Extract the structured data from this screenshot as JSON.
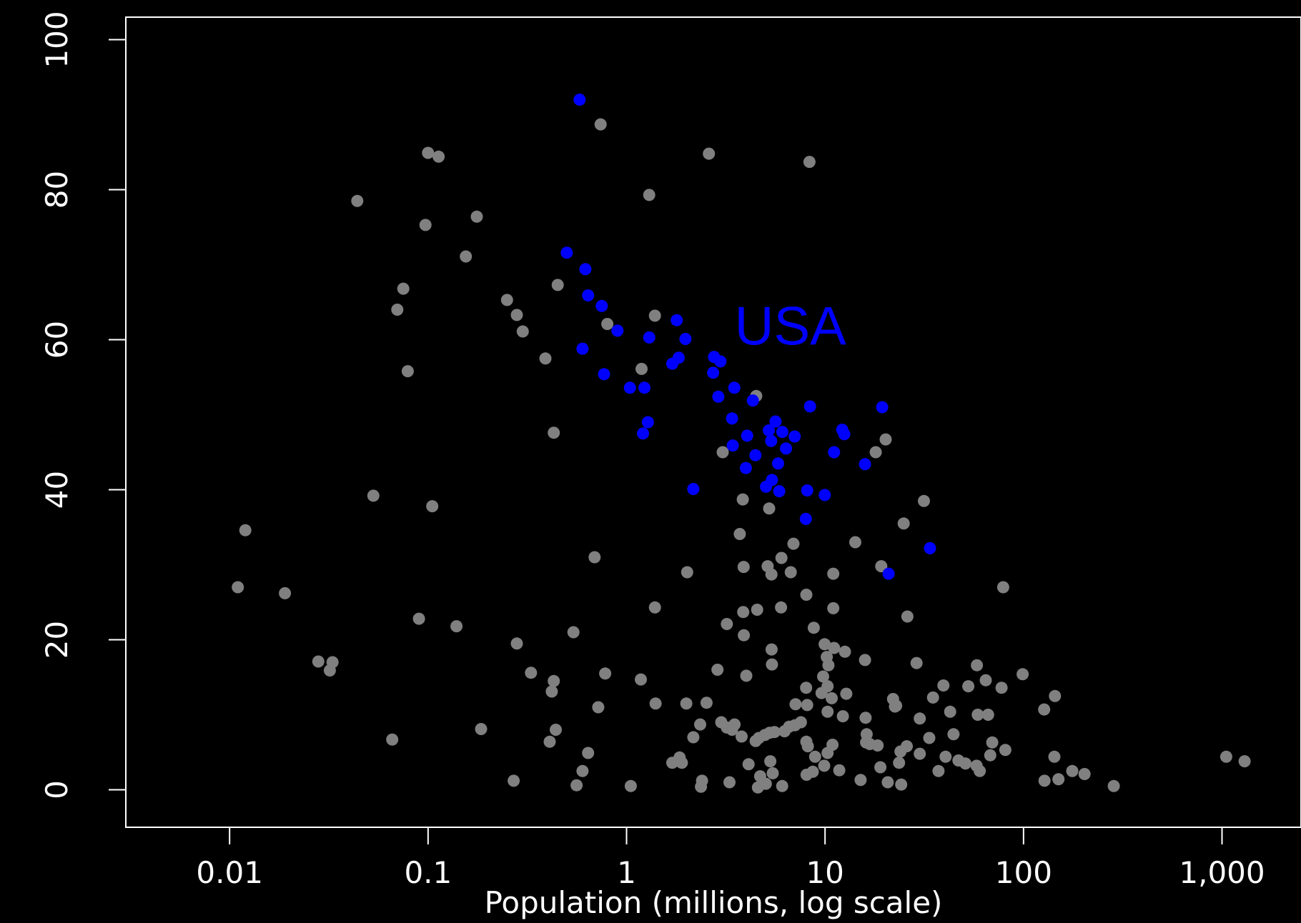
{
  "chart_data": {
    "type": "scatter",
    "title": "",
    "xlabel": "Population (millions, log scale)",
    "ylabel": "",
    "x_scale": "log",
    "xlim": [
      0.003,
      2500
    ],
    "ylim": [
      -5,
      103
    ],
    "x_ticks": [
      {
        "value": 0.01,
        "label": "0.01"
      },
      {
        "value": 0.1,
        "label": "0.1"
      },
      {
        "value": 1,
        "label": "1"
      },
      {
        "value": 10,
        "label": "10"
      },
      {
        "value": 100,
        "label": "100"
      },
      {
        "value": 1000,
        "label": "1,000"
      }
    ],
    "y_ticks": [
      {
        "value": 0,
        "label": "0"
      },
      {
        "value": 20,
        "label": "20"
      },
      {
        "value": 40,
        "label": "40"
      },
      {
        "value": 60,
        "label": "60"
      },
      {
        "value": 80,
        "label": "80"
      },
      {
        "value": 100,
        "label": "100"
      }
    ],
    "grid": false,
    "annotation": {
      "text": "USA",
      "x": 3.5,
      "y": 62,
      "color": "#0000ff"
    },
    "colors": {
      "background": "#000000",
      "axis": "#ffffff",
      "other": "#808080",
      "highlight": "#0000ff"
    },
    "series": [
      {
        "color": "#808080",
        "points": [
          [
            0.011,
            27
          ],
          [
            0.012,
            34.6
          ],
          [
            0.019,
            26.2
          ],
          [
            0.028,
            17.1
          ],
          [
            0.032,
            15.9
          ],
          [
            0.033,
            17
          ],
          [
            0.044,
            78.5
          ],
          [
            0.053,
            39.2
          ],
          [
            0.066,
            6.7
          ],
          [
            0.07,
            64
          ],
          [
            0.075,
            66.8
          ],
          [
            0.079,
            55.8
          ],
          [
            0.09,
            22.8
          ],
          [
            0.097,
            75.3
          ],
          [
            0.1,
            84.9
          ],
          [
            0.105,
            37.8
          ],
          [
            0.113,
            84.4
          ],
          [
            0.139,
            21.8
          ],
          [
            0.155,
            71.1
          ],
          [
            0.176,
            76.4
          ],
          [
            0.185,
            8.1
          ],
          [
            0.25,
            65.3
          ],
          [
            0.27,
            1.2
          ],
          [
            0.28,
            19.5
          ],
          [
            0.28,
            63.3
          ],
          [
            0.3,
            61.1
          ],
          [
            0.33,
            15.6
          ],
          [
            0.39,
            57.5
          ],
          [
            0.41,
            6.4
          ],
          [
            0.42,
            13.1
          ],
          [
            0.43,
            47.6
          ],
          [
            0.43,
            14.5
          ],
          [
            0.44,
            8
          ],
          [
            0.45,
            67.3
          ],
          [
            0.54,
            21
          ],
          [
            0.56,
            0.6
          ],
          [
            0.6,
            2.5
          ],
          [
            0.64,
            4.9
          ],
          [
            0.69,
            31
          ],
          [
            0.72,
            11
          ],
          [
            0.74,
            88.7
          ],
          [
            0.78,
            15.5
          ],
          [
            0.8,
            62.1
          ],
          [
            1.05,
            0.5
          ],
          [
            1.18,
            14.7
          ],
          [
            1.19,
            56.1
          ],
          [
            1.3,
            79.3
          ],
          [
            1.39,
            24.3
          ],
          [
            1.39,
            63.2
          ],
          [
            1.4,
            11.5
          ],
          [
            1.7,
            3.6
          ],
          [
            1.85,
            4.3
          ],
          [
            1.9,
            3.6
          ],
          [
            2,
            11.5
          ],
          [
            2.02,
            29
          ],
          [
            2.17,
            7
          ],
          [
            2.35,
            8.7
          ],
          [
            2.37,
            0.4
          ],
          [
            2.4,
            1.2
          ],
          [
            2.53,
            11.6
          ],
          [
            2.6,
            84.8
          ],
          [
            2.87,
            16
          ],
          [
            3,
            9
          ],
          [
            3.05,
            45
          ],
          [
            3.2,
            8.3
          ],
          [
            3.2,
            22.1
          ],
          [
            3.3,
            1
          ],
          [
            3.4,
            8
          ],
          [
            3.5,
            8.7
          ],
          [
            3.72,
            34.1
          ],
          [
            3.8,
            7.1
          ],
          [
            3.85,
            38.7
          ],
          [
            3.87,
            23.7
          ],
          [
            3.89,
            29.7
          ],
          [
            3.9,
            20.6
          ],
          [
            4.01,
            15.2
          ],
          [
            4.12,
            3.4
          ],
          [
            4.47,
            6.5
          ],
          [
            4.5,
            52.5
          ],
          [
            4.55,
            24
          ],
          [
            4.59,
            0.3
          ],
          [
            4.64,
            6.9
          ],
          [
            4.71,
            1.8
          ],
          [
            4.98,
            7.3
          ],
          [
            5.03,
            0.8
          ],
          [
            5.14,
            29.8
          ],
          [
            5.23,
            37.5
          ],
          [
            5.26,
            7.6
          ],
          [
            5.3,
            3.8
          ],
          [
            5.37,
            28.7
          ],
          [
            5.38,
            18.7
          ],
          [
            5.4,
            16.7
          ],
          [
            5.45,
            2.2
          ],
          [
            5.56,
            7.7
          ],
          [
            6,
            24.3
          ],
          [
            6.03,
            30.9
          ],
          [
            6.08,
            0.5
          ],
          [
            6.25,
            7.8
          ],
          [
            6.59,
            8.4
          ],
          [
            6.72,
            29
          ],
          [
            6.93,
            32.8
          ],
          [
            7.05,
            8.6
          ],
          [
            7.1,
            11.4
          ],
          [
            7.56,
            9
          ],
          [
            8.03,
            13.6
          ],
          [
            8.05,
            6.4
          ],
          [
            8.05,
            26
          ],
          [
            8.07,
            2
          ],
          [
            8.13,
            11.3
          ],
          [
            8.19,
            5.8
          ],
          [
            8.35,
            83.7
          ],
          [
            8.67,
            2.4
          ],
          [
            8.77,
            21.6
          ],
          [
            8.91,
            4.4
          ],
          [
            9.6,
            12.9
          ],
          [
            9.78,
            15.1
          ],
          [
            9.9,
            3.2
          ],
          [
            9.95,
            19.4
          ],
          [
            10.2,
            17.7
          ],
          [
            10.3,
            13.8
          ],
          [
            10.3,
            10.4
          ],
          [
            10.3,
            4.9
          ],
          [
            10.4,
            16.6
          ],
          [
            10.8,
            12.2
          ],
          [
            10.9,
            6
          ],
          [
            11,
            28.8
          ],
          [
            11,
            24.2
          ],
          [
            11.1,
            18.9
          ],
          [
            11.8,
            2.6
          ],
          [
            12.3,
            9.8
          ],
          [
            12.6,
            18.4
          ],
          [
            12.8,
            12.8
          ],
          [
            14.2,
            33
          ],
          [
            15.1,
            1.3
          ],
          [
            15.9,
            17.3
          ],
          [
            16,
            9.6
          ],
          [
            16.1,
            6.3
          ],
          [
            16.2,
            7.4
          ],
          [
            16.8,
            6.1
          ],
          [
            18,
            45
          ],
          [
            18.4,
            5.9
          ],
          [
            19,
            3
          ],
          [
            19.2,
            29.8
          ],
          [
            20.2,
            46.7
          ],
          [
            20.7,
            1
          ],
          [
            22,
            12.1
          ],
          [
            22.5,
            11.1
          ],
          [
            22.8,
            11.2
          ],
          [
            23.6,
            3.6
          ],
          [
            24,
            5.1
          ],
          [
            24.2,
            0.7
          ],
          [
            24.9,
            35.5
          ],
          [
            25.8,
            5.8
          ],
          [
            26,
            23.1
          ],
          [
            28.9,
            16.9
          ],
          [
            30,
            9.5
          ],
          [
            30,
            4.8
          ],
          [
            31.5,
            38.5
          ],
          [
            33.5,
            6.9
          ],
          [
            35,
            12.3
          ],
          [
            37.3,
            2.5
          ],
          [
            39.5,
            13.9
          ],
          [
            40.5,
            4.4
          ],
          [
            42.7,
            10.4
          ],
          [
            44.4,
            7.4
          ],
          [
            47,
            3.9
          ],
          [
            51,
            3.5
          ],
          [
            52.7,
            13.8
          ],
          [
            58,
            3.2
          ],
          [
            58.2,
            16.6
          ],
          [
            58.8,
            10
          ],
          [
            60.2,
            2.5
          ],
          [
            64.5,
            14.6
          ],
          [
            66.3,
            10
          ],
          [
            68,
            4.6
          ],
          [
            69.6,
            6.3
          ],
          [
            77.5,
            13.6
          ],
          [
            79,
            27
          ],
          [
            81,
            5.3
          ],
          [
            99,
            15.4
          ],
          [
            127,
            10.7
          ],
          [
            127.6,
            1.2
          ],
          [
            143,
            4.4
          ],
          [
            144,
            12.5
          ],
          [
            150,
            1.4
          ],
          [
            176,
            2.5
          ],
          [
            203,
            2.1
          ],
          [
            285,
            0.5
          ],
          [
            1050,
            4.4
          ],
          [
            1300,
            3.8
          ]
        ]
      },
      {
        "color": "#0000ff",
        "points": [
          [
            0.5,
            71.6
          ],
          [
            0.58,
            92
          ],
          [
            0.6,
            58.8
          ],
          [
            0.62,
            69.4
          ],
          [
            0.64,
            65.9
          ],
          [
            0.75,
            64.5
          ],
          [
            0.77,
            55.4
          ],
          [
            0.9,
            61.2
          ],
          [
            1.04,
            53.6
          ],
          [
            1.21,
            47.5
          ],
          [
            1.23,
            53.6
          ],
          [
            1.28,
            49
          ],
          [
            1.3,
            60.3
          ],
          [
            1.7,
            56.8
          ],
          [
            1.79,
            62.6
          ],
          [
            1.83,
            57.6
          ],
          [
            1.98,
            60.1
          ],
          [
            2.17,
            40.1
          ],
          [
            2.73,
            55.6
          ],
          [
            2.76,
            57.7
          ],
          [
            2.9,
            52.4
          ],
          [
            2.97,
            57.1
          ],
          [
            3.4,
            49.5
          ],
          [
            3.43,
            45.9
          ],
          [
            3.49,
            53.6
          ],
          [
            3.99,
            42.9
          ],
          [
            4.05,
            47.2
          ],
          [
            4.33,
            51.9
          ],
          [
            4.46,
            44.6
          ],
          [
            5.04,
            40.4
          ],
          [
            5.21,
            47.9
          ],
          [
            5.35,
            46.5
          ],
          [
            5.4,
            41.3
          ],
          [
            5.63,
            49.1
          ],
          [
            5.8,
            43.5
          ],
          [
            5.88,
            39.8
          ],
          [
            6.09,
            47.7
          ],
          [
            6.36,
            45.5
          ],
          [
            7.03,
            47.1
          ],
          [
            8,
            36.1
          ],
          [
            8.13,
            39.9
          ],
          [
            8.4,
            51.1
          ],
          [
            9.97,
            39.3
          ],
          [
            11.1,
            45
          ],
          [
            12.2,
            48
          ],
          [
            12.5,
            47.4
          ],
          [
            15.9,
            43.4
          ],
          [
            19.4,
            51
          ],
          [
            20.9,
            28.8
          ],
          [
            33.8,
            32.2
          ]
        ]
      }
    ]
  }
}
